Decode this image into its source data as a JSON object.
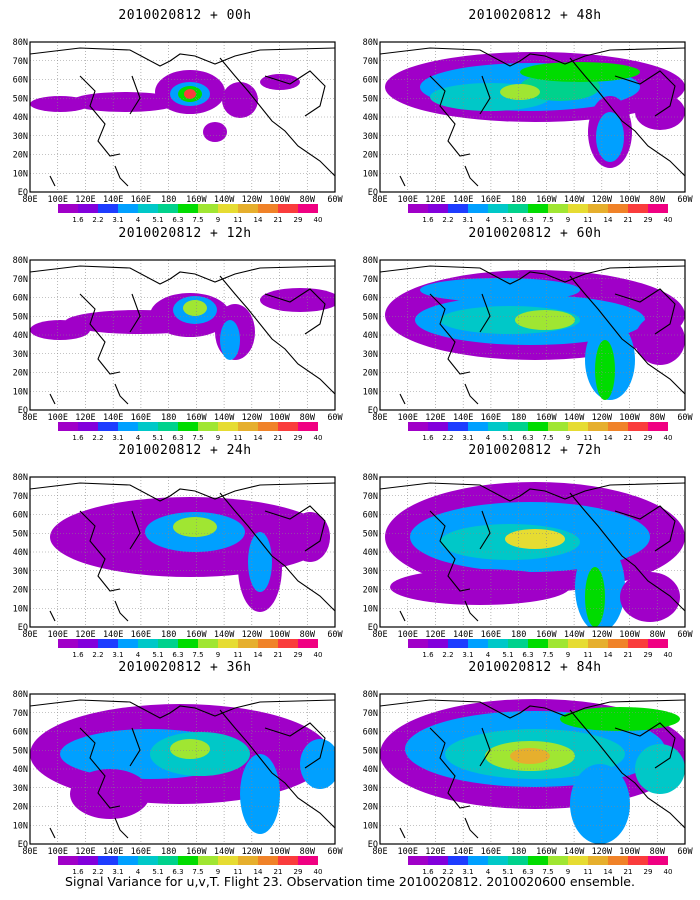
{
  "figure": {
    "caption": "Signal Variance for u,v,T. Flight 23. Observation time 2010020812. 2010020600 ensemble."
  },
  "axes": {
    "lat_labels": [
      "80N",
      "70N",
      "60N",
      "50N",
      "40N",
      "30N",
      "20N",
      "10N",
      "EQ"
    ],
    "lon_labels": [
      "80E",
      "100E",
      "120E",
      "140E",
      "160E",
      "180",
      "160W",
      "140W",
      "120W",
      "100W",
      "80W",
      "60W"
    ]
  },
  "colorbar": {
    "labels": [
      "1.6",
      "2.2",
      "3.1",
      "4",
      "5.1",
      "6.3",
      "7.5",
      "9",
      "11",
      "14",
      "21",
      "29",
      "40"
    ],
    "colors": [
      "#a000c8",
      "#8200dc",
      "#1e3cff",
      "#00a0ff",
      "#00c8c8",
      "#00d28c",
      "#00dc00",
      "#a0e632",
      "#e6dc32",
      "#e6af2d",
      "#f08228",
      "#fa3c3c",
      "#f00082"
    ]
  },
  "panels": [
    {
      "id": "p00",
      "title": "2010020812 + 00h"
    },
    {
      "id": "p48",
      "title": "2010020812 + 48h"
    },
    {
      "id": "p12",
      "title": "2010020812 + 12h"
    },
    {
      "id": "p60",
      "title": "2010020812 + 60h"
    },
    {
      "id": "p24",
      "title": "2010020812 + 24h"
    },
    {
      "id": "p72",
      "title": "2010020812 + 72h"
    },
    {
      "id": "p36",
      "title": "2010020812 + 36h"
    },
    {
      "id": "p84",
      "title": "2010020812 + 84h"
    }
  ]
}
